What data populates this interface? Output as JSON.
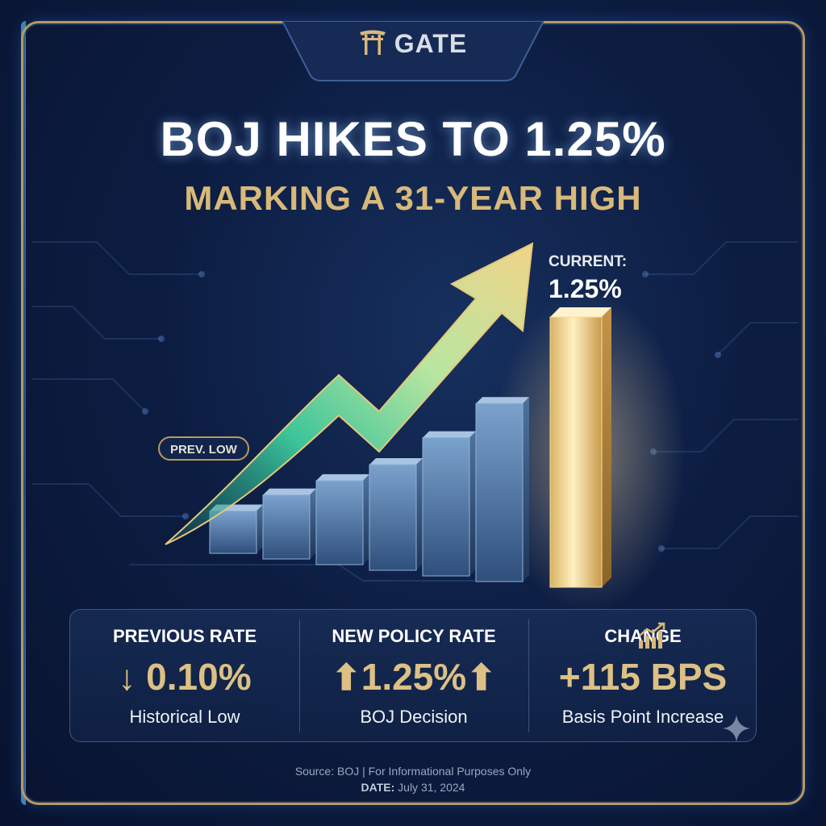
{
  "brand": {
    "name": "GATE",
    "icon": "torii-gate-icon"
  },
  "headline": "BOJ HIKES TO 1.25%",
  "subheadline": "MARKING A 31-YEAR HIGH",
  "chart": {
    "current_label": "CURRENT:",
    "current_value": "1.25%",
    "prev_low_label": "PREV. LOW"
  },
  "chart_data": {
    "type": "bar",
    "title": "",
    "categories": [
      "",
      "",
      "",
      "",
      "",
      "",
      ""
    ],
    "values": [
      0.1,
      0.22,
      0.33,
      0.45,
      0.63,
      0.85,
      1.25
    ],
    "highlight_last": true,
    "trend_arrow": true,
    "grid": false,
    "colors": {
      "bars": "#5d86b4",
      "highlight": "#e6c57a",
      "arrow_start": "#2aa38a",
      "arrow_end": "#e8c878"
    }
  },
  "stats": [
    {
      "label": "PREVIOUS RATE",
      "arrow_left": "↓",
      "value": "0.10%",
      "arrow_right": "",
      "sub": "Historical Low"
    },
    {
      "label": "NEW POLICY RATE",
      "arrow_left": "⬆",
      "value": "1.25%",
      "arrow_right": "⬆",
      "sub": "BOJ Decision"
    },
    {
      "label": "CHANGE",
      "arrow_left": "",
      "value": "+115 BPS",
      "arrow_right": "",
      "sub": "Basis Point Increase",
      "icon": "bar-chart-up-icon"
    }
  ],
  "footer": {
    "source": "Source: BOJ | For Informational Purposes Only",
    "date_label": "DATE:",
    "date_value": "July 31, 2024"
  },
  "colors": {
    "gold": "#d8b97a",
    "navy": "#0d1d42",
    "accent_blue": "#4fb3e8"
  }
}
